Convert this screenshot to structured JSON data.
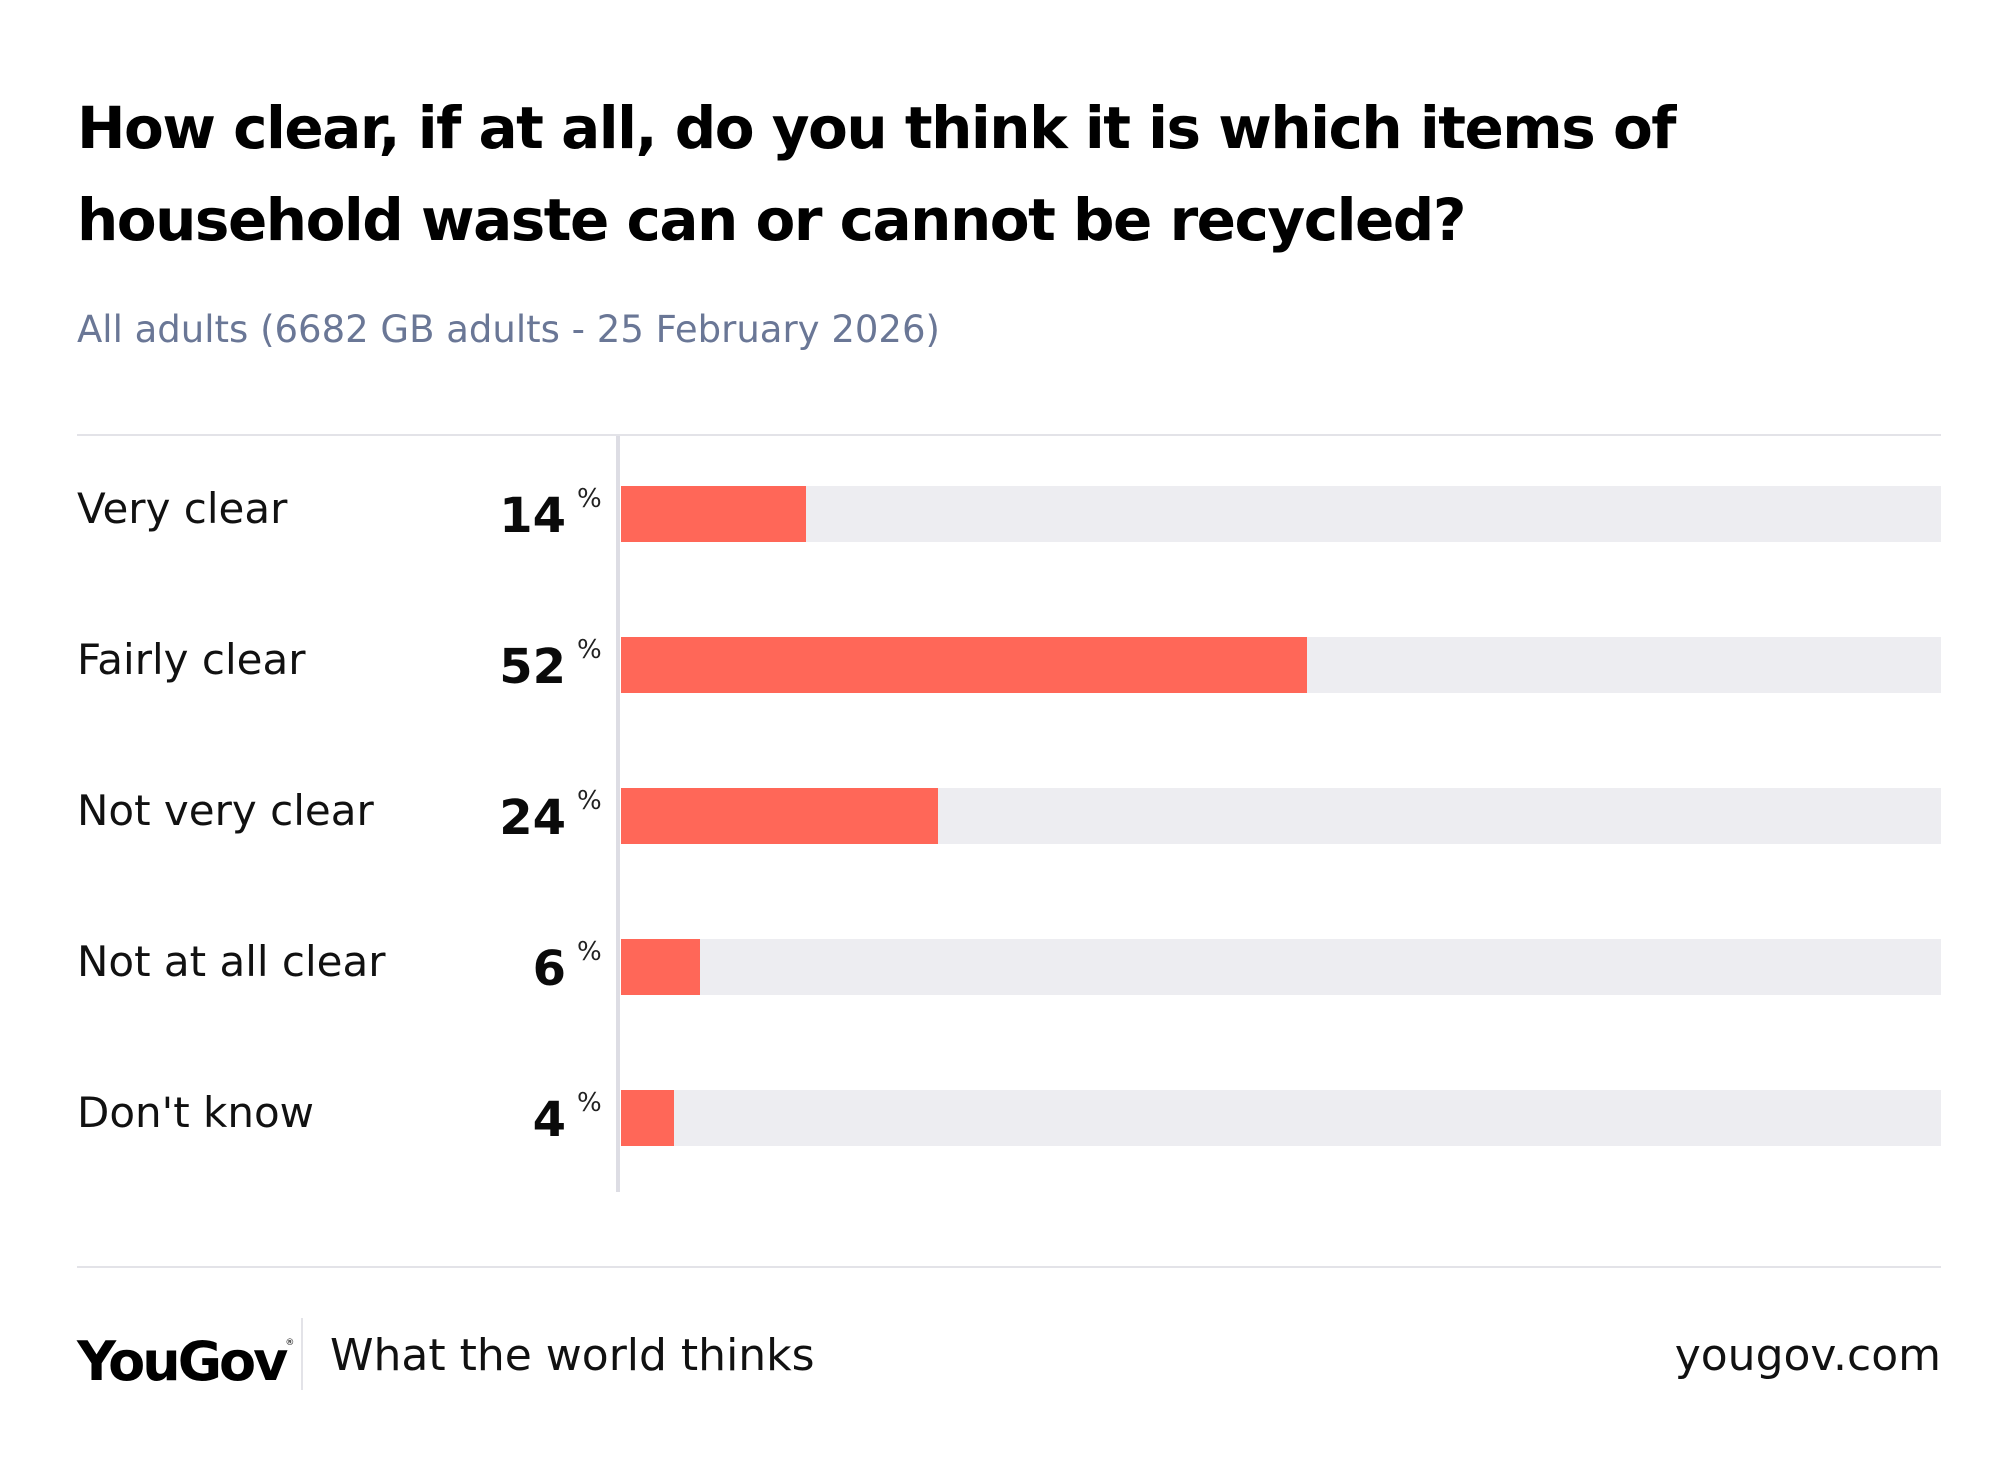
{
  "title": "How clear, if at all, do you think it is which items of household waste can or cannot be recycled?",
  "subtitle": "All adults (6682 GB adults - 25 February 2026)",
  "colors": {
    "bar": "#ff6758",
    "track": "#ededf1",
    "subtitle": "#6a7796"
  },
  "chart_data": {
    "type": "bar",
    "orientation": "horizontal",
    "title": "How clear, if at all, do you think it is which items of household waste can or cannot be recycled?",
    "subtitle": "All adults (6682 GB adults - 25 February 2026)",
    "unit": "%",
    "xlim": [
      0,
      100
    ],
    "categories": [
      "Very clear",
      "Fairly clear",
      "Not very clear",
      "Not at all clear",
      "Don't know"
    ],
    "values": [
      14,
      52,
      24,
      6,
      4
    ],
    "rows": [
      {
        "label": "Very clear",
        "value": 14,
        "value_text": "14",
        "unit": "%"
      },
      {
        "label": "Fairly clear",
        "value": 52,
        "value_text": "52",
        "unit": "%"
      },
      {
        "label": "Not very clear",
        "value": 24,
        "value_text": "24",
        "unit": "%"
      },
      {
        "label": "Not at all clear",
        "value": 6,
        "value_text": "6",
        "unit": "%"
      },
      {
        "label": "Don't know",
        "value": 4,
        "value_text": "4",
        "unit": "%"
      }
    ]
  },
  "footer": {
    "logo": "YouGov",
    "logo_mark": "®",
    "tagline": "What the world thinks",
    "site": "yougov.com"
  }
}
